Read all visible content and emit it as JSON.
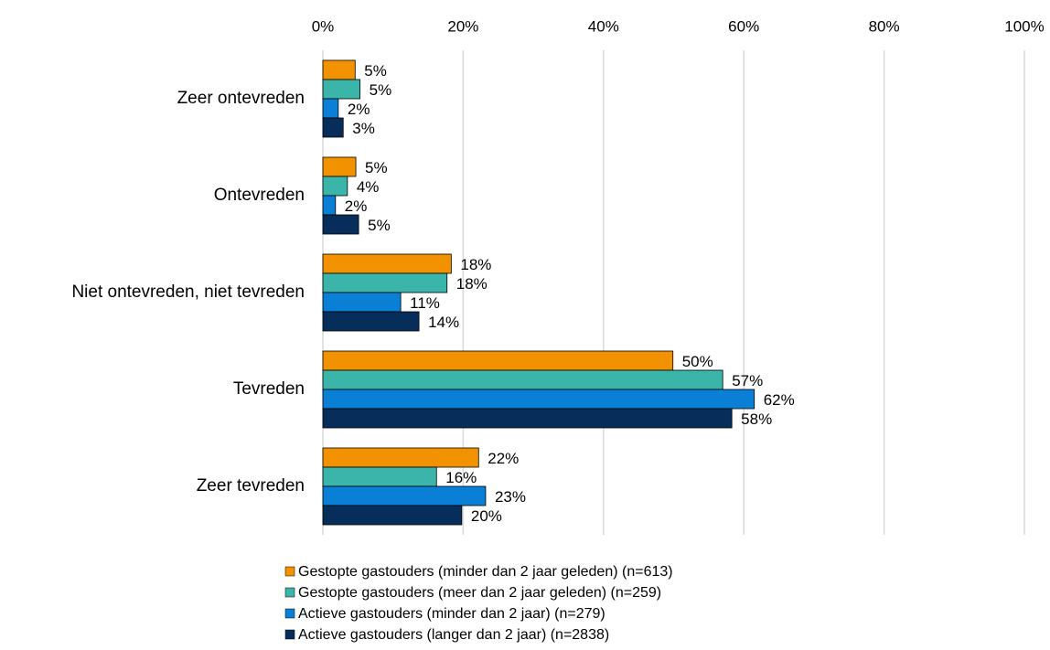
{
  "chart_data": {
    "type": "hbar",
    "categories": [
      "Zeer ontevreden",
      "Ontevreden",
      "Niet ontevreden, niet tevreden",
      "Tevreden",
      "Zeer tevreden"
    ],
    "series": [
      {
        "name": "Gestopte gastouders (minder dan 2 jaar geleden) (n=613)",
        "color": "#f39200",
        "values": [
          4.6,
          4.7,
          18.3,
          49.9,
          22.2
        ],
        "value_labels": [
          "5%",
          "5%",
          "18%",
          "50%",
          "22%"
        ]
      },
      {
        "name": "Gestopte gastouders (meer dan 2 jaar geleden) (n=259)",
        "color": "#3bb5aa",
        "values": [
          5.3,
          3.5,
          17.7,
          57.0,
          16.2
        ],
        "value_labels": [
          "5%",
          "4%",
          "18%",
          "57%",
          "16%"
        ]
      },
      {
        "name": "Actieve gastouders (minder dan 2 jaar) (n=279)",
        "color": "#0a7fd6",
        "values": [
          2.2,
          1.8,
          11.1,
          61.5,
          23.2
        ],
        "value_labels": [
          "2%",
          "2%",
          "11%",
          "62%",
          "23%"
        ]
      },
      {
        "name": "Actieve gastouders (langer dan 2 jaar) (n=2838)",
        "color": "#072d5a",
        "values": [
          2.9,
          5.1,
          13.7,
          58.3,
          19.8
        ],
        "value_labels": [
          "3%",
          "5%",
          "14%",
          "58%",
          "20%"
        ]
      }
    ],
    "xlim": [
      0,
      100
    ],
    "xticks": [
      {
        "value": 0,
        "label": "0%"
      },
      {
        "value": 20,
        "label": "20%"
      },
      {
        "value": 40,
        "label": "40%"
      },
      {
        "value": 60,
        "label": "60%"
      },
      {
        "value": 80,
        "label": "80%"
      },
      {
        "value": 100,
        "label": "100%"
      }
    ],
    "grid": true,
    "legend": "bottom"
  }
}
